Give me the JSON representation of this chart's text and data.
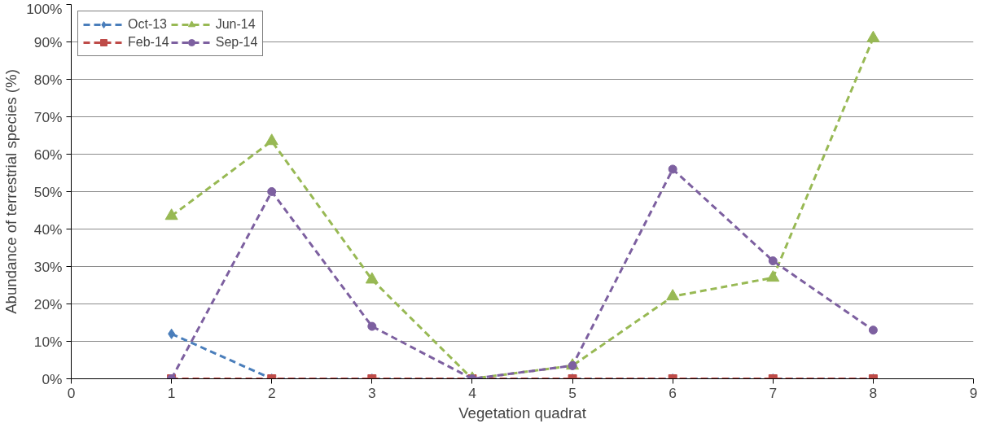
{
  "chart_data": {
    "type": "line",
    "xlabel": "Vegetation quadrat",
    "ylabel": "Abundance of terrestrial species (%)",
    "x": [
      1,
      2,
      3,
      4,
      5,
      6,
      7,
      8
    ],
    "series": [
      {
        "name": "Oct-13",
        "color": "#4a7ebb",
        "marker": "diamond",
        "values": [
          12,
          0,
          0,
          0,
          0,
          0,
          0,
          0
        ]
      },
      {
        "name": "Feb-14",
        "color": "#be4b48",
        "marker": "square",
        "values": [
          0,
          0,
          0,
          0,
          0,
          0,
          0,
          0
        ]
      },
      {
        "name": "Jun-14",
        "color": "#98b954",
        "marker": "triangle",
        "values": [
          43.5,
          63.5,
          26.5,
          0,
          3.5,
          22,
          27,
          91
        ]
      },
      {
        "name": "Sep-14",
        "color": "#7d60a0",
        "marker": "circle",
        "values": [
          0,
          50,
          14,
          0,
          3.5,
          56,
          31.5,
          13
        ]
      }
    ],
    "xlim": [
      0,
      9
    ],
    "xticks": [
      0,
      1,
      2,
      3,
      4,
      5,
      6,
      7,
      8,
      9
    ],
    "ylim": [
      0,
      100
    ],
    "yticks": [
      {
        "value": 0,
        "label": "0%"
      },
      {
        "value": 10,
        "label": "10%"
      },
      {
        "value": 20,
        "label": "20%"
      },
      {
        "value": 30,
        "label": "30%"
      },
      {
        "value": 40,
        "label": "40%"
      },
      {
        "value": 50,
        "label": "50%"
      },
      {
        "value": 60,
        "label": "60%"
      },
      {
        "value": 70,
        "label": "70%"
      },
      {
        "value": 80,
        "label": "80%"
      },
      {
        "value": 90,
        "label": "90%"
      },
      {
        "value": 100,
        "label": "100%"
      }
    ],
    "grid": "y",
    "legend": "top left",
    "line_style": "dashed"
  }
}
